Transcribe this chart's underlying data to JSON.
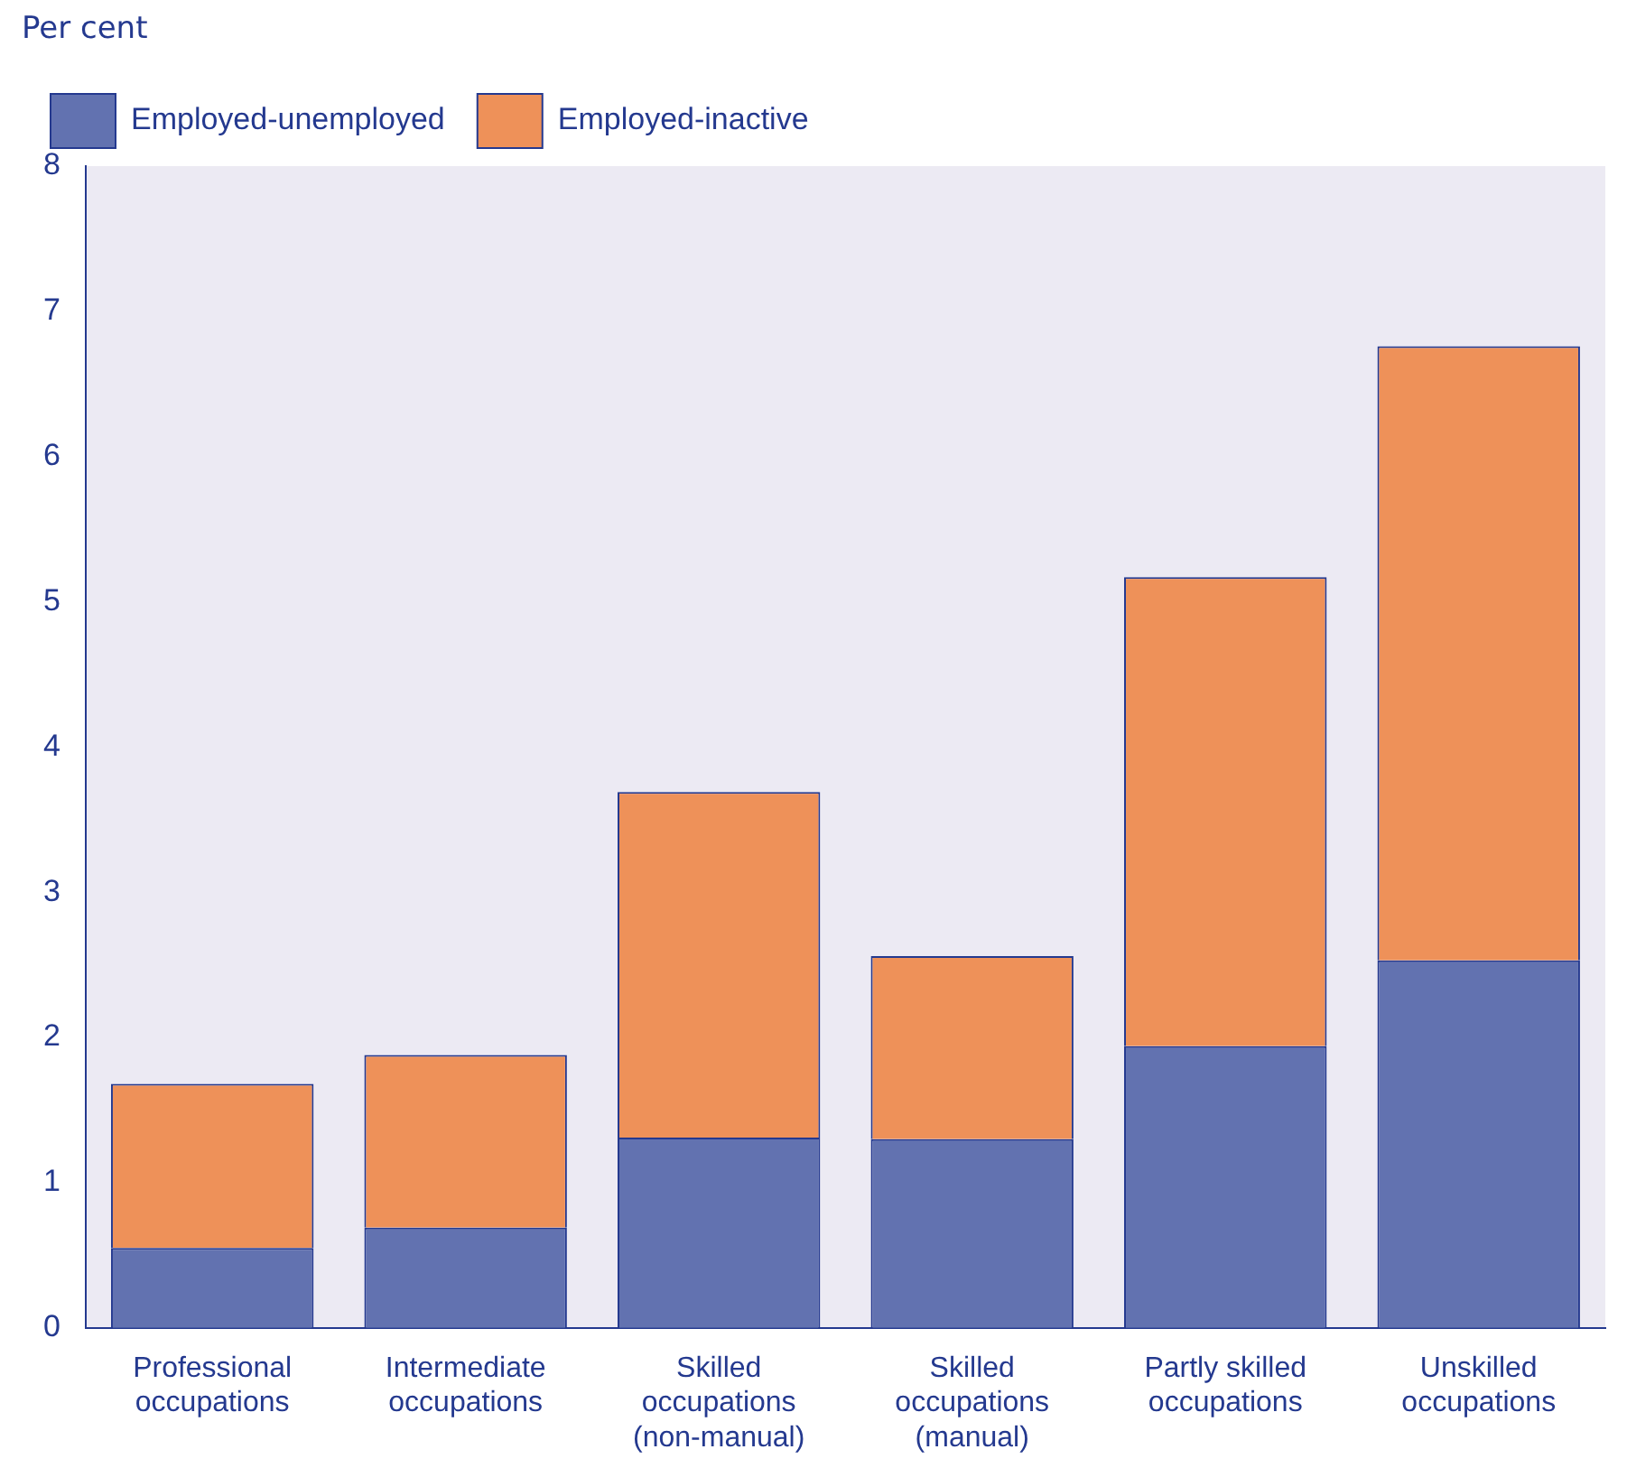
{
  "chart_data": {
    "type": "bar",
    "stacked": true,
    "ylabel": "Per cent",
    "categories": [
      "Professional occupations",
      "Intermediate occupations",
      "Skilled occupations (non-manual)",
      "Skilled occupations (manual)",
      "Partly skilled occupations",
      "Unskilled occupations"
    ],
    "series": [
      {
        "name": "Employed-unemployed",
        "color": "#6272b0",
        "values": [
          0.55,
          0.69,
          1.31,
          1.3,
          1.94,
          2.53
        ]
      },
      {
        "name": "Employed-inactive",
        "color": "#ee9159",
        "values": [
          1.13,
          1.19,
          2.38,
          1.26,
          3.23,
          4.23
        ]
      }
    ],
    "ylim": [
      0,
      8
    ],
    "yticks": [
      0,
      1,
      2,
      3,
      4,
      5,
      6,
      7,
      8
    ],
    "grid": false,
    "legend": "top left"
  }
}
